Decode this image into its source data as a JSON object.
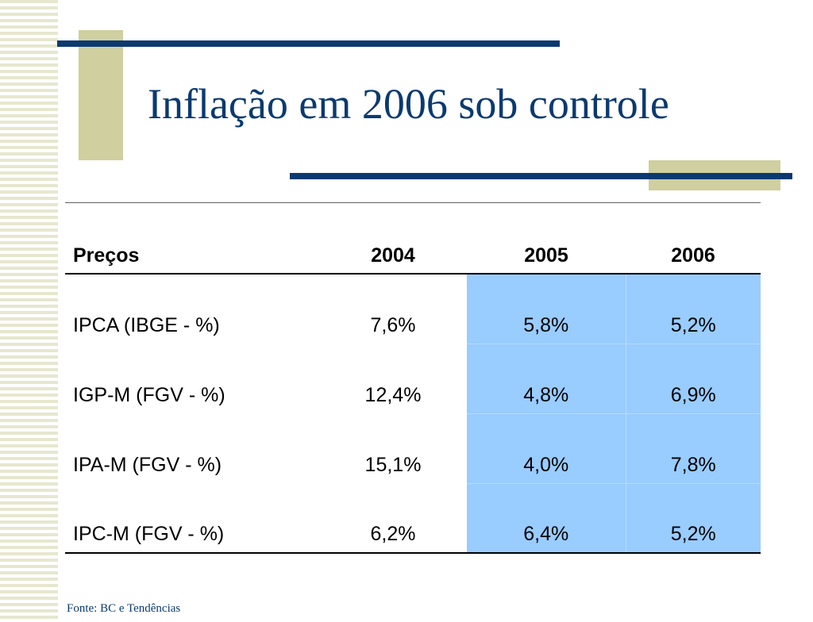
{
  "slide": {
    "title": "Inflação em 2006 sob controle",
    "source": "Fonte: BC e Tendências",
    "colors": {
      "title": "#0b3a70",
      "accent_bar": "#0b3a70",
      "accent_block": "#cfcf9f",
      "highlight": "#99ccff"
    }
  },
  "table": {
    "headers": [
      "Preços",
      "2004",
      "2005",
      "2006"
    ],
    "rows": [
      {
        "label": "IPCA (IBGE - %)",
        "y2004": "7,6%",
        "y2005": "5,8%",
        "y2006": "5,2%"
      },
      {
        "label": "IGP-M (FGV - %)",
        "y2004": "12,4%",
        "y2005": "4,8%",
        "y2006": "6,9%"
      },
      {
        "label": "IPA-M (FGV - %)",
        "y2004": "15,1%",
        "y2005": "4,0%",
        "y2006": "7,8%"
      },
      {
        "label": "IPC-M (FGV - %)",
        "y2004": "6,2%",
        "y2005": "6,4%",
        "y2006": "5,2%"
      }
    ]
  }
}
